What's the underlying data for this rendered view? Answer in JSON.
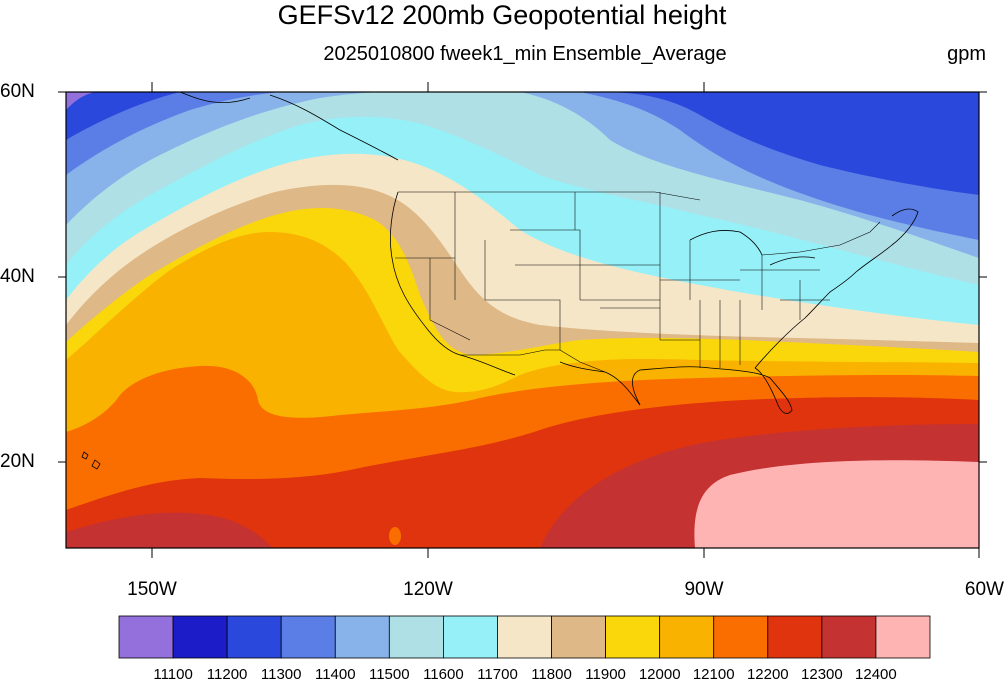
{
  "map": {
    "title": "GEFSv12 200mb Geopotential height",
    "subtitle": "2025010800 fweek1_min Ensemble_Average",
    "units": "gpm",
    "lat_labels": [
      "60N",
      "40N",
      "20N"
    ],
    "lon_labels": [
      "150W",
      "120W",
      "90W",
      "60W"
    ]
  },
  "colorbar": {
    "levels": [
      "11100",
      "11200",
      "11300",
      "11400",
      "11500",
      "11600",
      "11700",
      "11800",
      "11900",
      "12000",
      "12100",
      "12200",
      "12300",
      "12400"
    ],
    "colors": [
      "#9370db",
      "#1c1cc8",
      "#2a48dc",
      "#5a7ee6",
      "#87b2ea",
      "#aee0e6",
      "#96f0f8",
      "#f5e6c8",
      "#deb887",
      "#fad70a",
      "#fab200",
      "#fa6e00",
      "#e0340e",
      "#c43232",
      "#ffb4b4"
    ]
  }
}
